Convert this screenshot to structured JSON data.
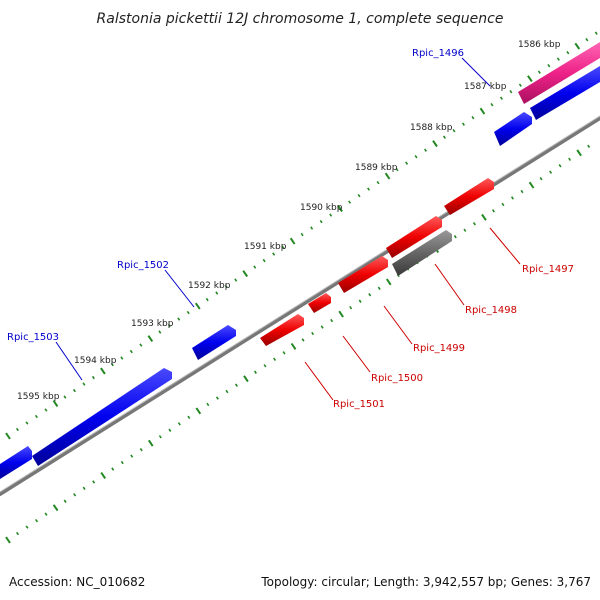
{
  "title": "Ralstonia pickettii 12J chromosome 1, complete sequence",
  "footer": {
    "accession": "Accession: NC_010682",
    "summary": "Topology: circular; Length: 3,942,557 bp; Genes: 3,767"
  },
  "colors": {
    "backbone": "#888888",
    "forward_gene": "#0000ee",
    "reverse_gene": "#ee0000",
    "highlight_gene": "#ee2288",
    "pseudo_gene": "#666666",
    "tick_marks": "#228822",
    "forward_label": "#0000cc",
    "reverse_label": "#cc0000"
  },
  "scale_labels": [
    "1586 kbp",
    "1587 kbp",
    "1588 kbp",
    "1589 kbp",
    "1590 kbp",
    "1591 kbp",
    "1592 kbp",
    "1593 kbp",
    "1594 kbp",
    "1595 kbp"
  ],
  "forward_gene_labels": [
    "Rpic_1496",
    "Rpic_1502",
    "Rpic_1503"
  ],
  "reverse_gene_labels": [
    "Rpic_1497",
    "Rpic_1498",
    "Rpic_1499",
    "Rpic_1500",
    "Rpic_1501"
  ]
}
